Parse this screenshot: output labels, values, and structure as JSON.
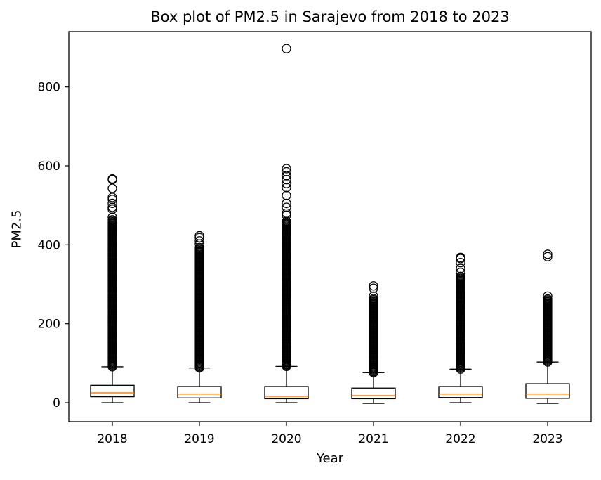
{
  "chart_data": {
    "type": "boxplot",
    "title": "Box plot of PM2.5 in Sarajevo from 2018 to 2023",
    "xlabel": "Year",
    "ylabel": "PM2.5",
    "categories": [
      "2018",
      "2019",
      "2020",
      "2021",
      "2022",
      "2023"
    ],
    "ylim": [
      -48,
      940
    ],
    "yticks": [
      0,
      200,
      400,
      600,
      800
    ],
    "grid": false,
    "colors": {
      "box": "#000000",
      "median": "#ff7f0e",
      "flier": "#000000"
    },
    "boxes": [
      {
        "label": "2018",
        "whislo": 0,
        "q1": 15,
        "med": 25,
        "q3": 44,
        "whishi": 91,
        "outlier_range": [
          91,
          465
        ],
        "outliers": [
          470,
          490,
          495,
          505,
          515,
          520,
          543,
          565,
          567
        ]
      },
      {
        "label": "2019",
        "whislo": 0,
        "q1": 12,
        "med": 22,
        "q3": 41,
        "whishi": 88,
        "outlier_range": [
          88,
          395
        ],
        "outliers": [
          402,
          410,
          418,
          423
        ]
      },
      {
        "label": "2020",
        "whislo": 0,
        "q1": 10,
        "med": 16,
        "q3": 41,
        "whishi": 92,
        "outlier_range": [
          92,
          460
        ],
        "outliers": [
          475,
          480,
          495,
          505,
          525,
          545,
          555,
          565,
          575,
          585,
          593,
          897
        ]
      },
      {
        "label": "2021",
        "whislo": -2,
        "q1": 10,
        "med": 18,
        "q3": 37,
        "whishi": 76,
        "outlier_range": [
          76,
          265
        ],
        "outliers": [
          270,
          290,
          296
        ]
      },
      {
        "label": "2022",
        "whislo": 0,
        "q1": 13,
        "med": 22,
        "q3": 41,
        "whishi": 85,
        "outlier_range": [
          85,
          320
        ],
        "outliers": [
          330,
          340,
          355,
          365,
          368
        ]
      },
      {
        "label": "2023",
        "whislo": -2,
        "q1": 11,
        "med": 22,
        "q3": 48,
        "whishi": 103,
        "outlier_range": [
          103,
          265
        ],
        "outliers": [
          270,
          370,
          376
        ]
      }
    ]
  }
}
